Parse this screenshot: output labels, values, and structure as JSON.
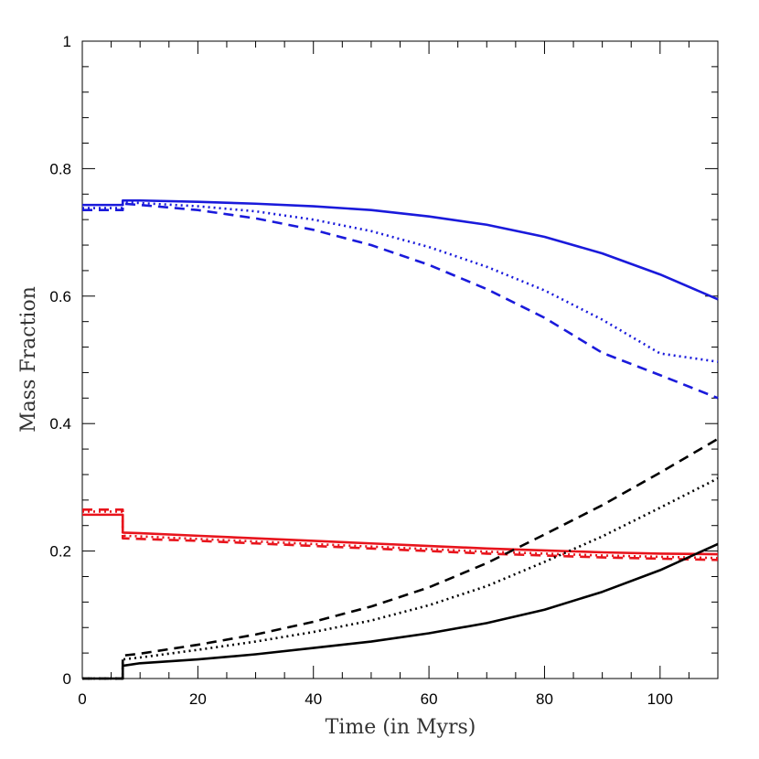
{
  "chart_data": {
    "type": "line",
    "title": "",
    "xlabel": "Time (in Myrs)",
    "ylabel": "Mass Fraction",
    "xlim": [
      0,
      110
    ],
    "ylim": [
      0,
      1
    ],
    "x_ticks": [
      0,
      20,
      40,
      60,
      80,
      100
    ],
    "y_ticks": [
      0,
      0.2,
      0.4,
      0.6,
      0.8,
      1
    ],
    "x_tick_labels": [
      "0",
      "20",
      "40",
      "60",
      "80",
      "100"
    ],
    "y_tick_labels": [
      "0",
      "0.2",
      "0.4",
      "0.6",
      "0.8",
      "1"
    ],
    "grid": false,
    "legend": "none",
    "series": [
      {
        "color": "#1a1adb",
        "linestyle": "solid",
        "x": [
          0,
          7,
          7,
          10,
          20,
          30,
          40,
          50,
          60,
          70,
          80,
          90,
          100,
          110
        ],
        "y": [
          0.743,
          0.743,
          0.75,
          0.75,
          0.748,
          0.745,
          0.741,
          0.735,
          0.725,
          0.712,
          0.693,
          0.667,
          0.634,
          0.595
        ]
      },
      {
        "color": "#1a1adb",
        "linestyle": "dotted",
        "x": [
          0,
          7,
          7,
          10,
          20,
          30,
          40,
          50,
          60,
          70,
          80,
          90,
          100,
          110
        ],
        "y": [
          0.738,
          0.738,
          0.747,
          0.746,
          0.741,
          0.733,
          0.72,
          0.702,
          0.677,
          0.646,
          0.609,
          0.563,
          0.51,
          0.497
        ]
      },
      {
        "color": "#1a1adb",
        "linestyle": "dashed",
        "x": [
          0,
          7,
          7,
          10,
          20,
          30,
          40,
          50,
          60,
          70,
          80,
          90,
          100,
          110
        ],
        "y": [
          0.735,
          0.735,
          0.745,
          0.743,
          0.735,
          0.722,
          0.704,
          0.68,
          0.649,
          0.611,
          0.566,
          0.511,
          0.476,
          0.44
        ]
      },
      {
        "color": "#e8141c",
        "linestyle": "solid",
        "x": [
          0,
          7,
          7,
          10,
          20,
          30,
          40,
          50,
          60,
          70,
          80,
          90,
          100,
          110
        ],
        "y": [
          0.257,
          0.257,
          0.229,
          0.228,
          0.224,
          0.22,
          0.216,
          0.212,
          0.208,
          0.204,
          0.201,
          0.198,
          0.196,
          0.195
        ]
      },
      {
        "color": "#e8141c",
        "linestyle": "dotted",
        "x": [
          0,
          7,
          7,
          10,
          20,
          30,
          40,
          50,
          60,
          70,
          80,
          90,
          100,
          110
        ],
        "y": [
          0.262,
          0.262,
          0.224,
          0.223,
          0.219,
          0.215,
          0.211,
          0.207,
          0.203,
          0.199,
          0.196,
          0.193,
          0.191,
          0.189
        ]
      },
      {
        "color": "#e8141c",
        "linestyle": "dashed",
        "x": [
          0,
          7,
          7,
          10,
          20,
          30,
          40,
          50,
          60,
          70,
          80,
          90,
          100,
          110
        ],
        "y": [
          0.265,
          0.265,
          0.22,
          0.219,
          0.216,
          0.212,
          0.208,
          0.204,
          0.2,
          0.196,
          0.193,
          0.19,
          0.188,
          0.186
        ]
      },
      {
        "color": "#000000",
        "linestyle": "solid",
        "x": [
          0,
          7,
          7,
          10,
          20,
          30,
          40,
          50,
          60,
          70,
          80,
          90,
          100,
          110
        ],
        "y": [
          0.0,
          0.0,
          0.02,
          0.024,
          0.03,
          0.038,
          0.048,
          0.058,
          0.071,
          0.087,
          0.108,
          0.136,
          0.17,
          0.211
        ]
      },
      {
        "color": "#000000",
        "linestyle": "dotted",
        "x": [
          0,
          7,
          7,
          10,
          20,
          30,
          40,
          50,
          60,
          70,
          80,
          90,
          100,
          110
        ],
        "y": [
          0.0,
          0.0,
          0.03,
          0.033,
          0.045,
          0.058,
          0.073,
          0.091,
          0.115,
          0.145,
          0.183,
          0.223,
          0.268,
          0.314
        ]
      },
      {
        "color": "#000000",
        "linestyle": "dashed",
        "x": [
          0,
          7,
          7,
          10,
          20,
          30,
          40,
          50,
          60,
          70,
          80,
          90,
          100,
          110
        ],
        "y": [
          0.0,
          0.0,
          0.036,
          0.039,
          0.053,
          0.069,
          0.089,
          0.113,
          0.143,
          0.181,
          0.226,
          0.272,
          0.323,
          0.376
        ]
      }
    ]
  }
}
